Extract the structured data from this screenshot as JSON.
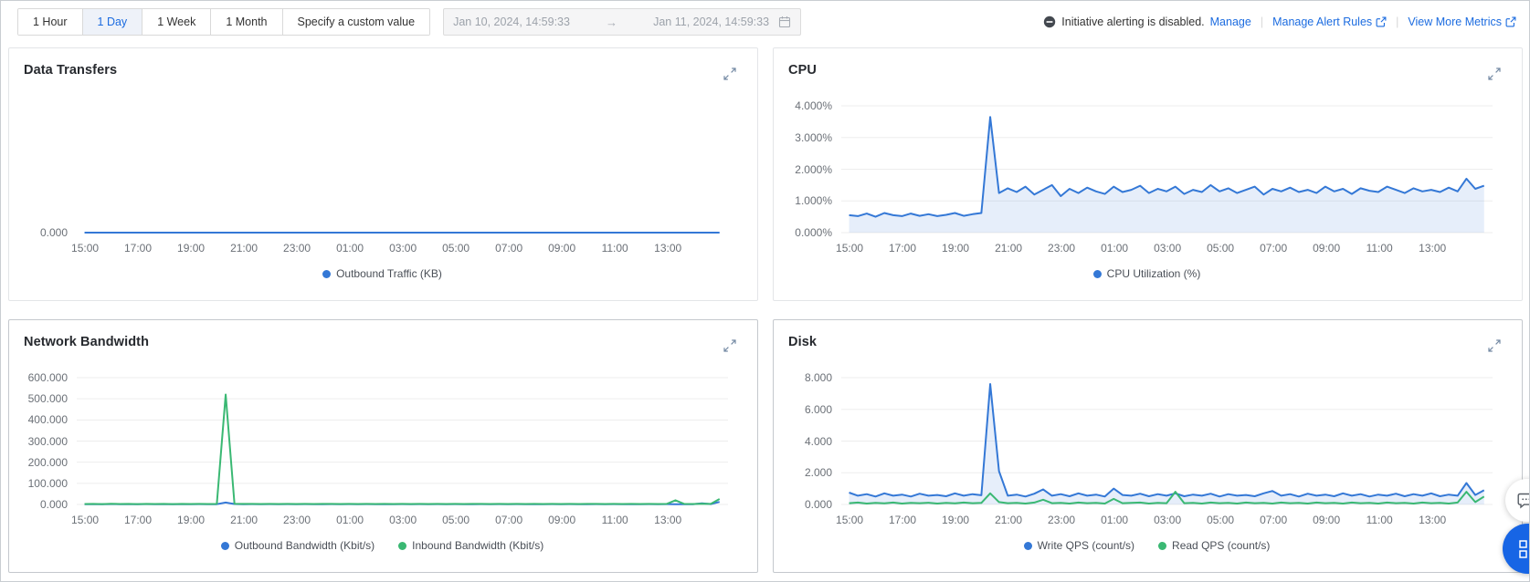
{
  "topbar": {
    "range_options": [
      "1 Hour",
      "1 Day",
      "1 Week",
      "1 Month",
      "Specify a custom value"
    ],
    "selected_range": "1 Day",
    "date_start": "Jan 10, 2024, 14:59:33",
    "date_arrow": "→",
    "date_end": "Jan 11, 2024, 14:59:33",
    "alert_status": "Initiative alerting is disabled.",
    "manage_label": "Manage",
    "separator": "|",
    "manage_alert_rules_label": "Manage Alert Rules",
    "view_more_metrics_label": "View More Metrics"
  },
  "colors": {
    "accent_blue": "#1c6ce0",
    "series_blue": "#3478d6",
    "series_green": "#3ab873",
    "blue_fill": "rgba(60,120,216,0.13)",
    "grid_line": "#ededed",
    "axis_text": "#6b7077"
  },
  "chart_data": [
    {
      "type": "line",
      "title": "Data Transfers",
      "ylim": [
        0,
        0
      ],
      "y_ticks": [
        "0.000"
      ],
      "x_ticks": [
        "15:00",
        "17:00",
        "19:00",
        "21:00",
        "23:00",
        "01:00",
        "03:00",
        "05:00",
        "07:00",
        "09:00",
        "11:00",
        "13:00"
      ],
      "time_range": [
        "14:59",
        "14:59 next day"
      ],
      "series": [
        {
          "name": "Outbound Traffic (KB)",
          "color": "#3478d6",
          "fill": false,
          "values": [
            0,
            0
          ]
        }
      ]
    },
    {
      "type": "area",
      "title": "CPU",
      "ylim": [
        0,
        4
      ],
      "unit": "%",
      "y_ticks": [
        "4.000%",
        "3.000%",
        "2.000%",
        "1.000%",
        "0.000%"
      ],
      "x_ticks": [
        "15:00",
        "17:00",
        "19:00",
        "21:00",
        "23:00",
        "01:00",
        "03:00",
        "05:00",
        "07:00",
        "09:00",
        "11:00",
        "13:00"
      ],
      "sample_interval_minutes": 20,
      "series": [
        {
          "name": "CPU Utilization (%)",
          "color": "#3478d6",
          "fill": true,
          "values": [
            0.55,
            0.52,
            0.6,
            0.5,
            0.62,
            0.55,
            0.52,
            0.6,
            0.53,
            0.58,
            0.52,
            0.56,
            0.62,
            0.53,
            0.58,
            0.62,
            3.65,
            1.25,
            1.4,
            1.28,
            1.45,
            1.2,
            1.35,
            1.5,
            1.15,
            1.38,
            1.25,
            1.42,
            1.3,
            1.22,
            1.45,
            1.28,
            1.35,
            1.48,
            1.25,
            1.38,
            1.3,
            1.45,
            1.22,
            1.35,
            1.28,
            1.5,
            1.3,
            1.4,
            1.25,
            1.35,
            1.45,
            1.2,
            1.38,
            1.3,
            1.42,
            1.28,
            1.35,
            1.25,
            1.45,
            1.3,
            1.38,
            1.22,
            1.4,
            1.32,
            1.28,
            1.45,
            1.35,
            1.25,
            1.4,
            1.3,
            1.35,
            1.28,
            1.42,
            1.3,
            1.7,
            1.38,
            1.48
          ]
        }
      ]
    },
    {
      "type": "line",
      "title": "Network Bandwidth",
      "ylim": [
        0,
        600
      ],
      "y_ticks": [
        "600.000",
        "500.000",
        "400.000",
        "300.000",
        "200.000",
        "100.000",
        "0.000"
      ],
      "x_ticks": [
        "15:00",
        "17:00",
        "19:00",
        "21:00",
        "23:00",
        "01:00",
        "03:00",
        "05:00",
        "07:00",
        "09:00",
        "11:00",
        "13:00"
      ],
      "sample_interval_minutes": 20,
      "series": [
        {
          "name": "Outbound Bandwidth (Kbit/s)",
          "color": "#3478d6",
          "fill": false,
          "values": [
            1.2,
            1.5,
            1.0,
            1.8,
            1.2,
            1.5,
            1.1,
            1.6,
            1.2,
            1.4,
            1.1,
            1.5,
            1.2,
            1.6,
            1.3,
            1.5,
            9.0,
            2.0,
            1.5,
            1.8,
            1.3,
            1.6,
            1.2,
            1.8,
            1.4,
            1.6,
            1.2,
            1.5,
            1.8,
            1.3,
            1.6,
            1.4,
            1.8,
            1.3,
            1.5,
            1.2,
            1.7,
            1.4,
            1.6,
            1.3,
            1.8,
            1.4,
            1.6,
            1.2,
            1.5,
            1.7,
            1.3,
            1.6,
            1.4,
            1.8,
            1.3,
            1.5,
            1.2,
            1.6,
            1.4,
            1.7,
            1.3,
            1.5,
            1.8,
            1.4,
            1.6,
            1.3,
            1.5,
            1.2,
            1.7,
            1.4,
            1.6,
            1.3,
            1.5,
            1.4,
            5.0,
            1.6,
            12.0
          ]
        },
        {
          "name": "Inbound Bandwidth (Kbit/s)",
          "color": "#3ab873",
          "fill": false,
          "values": [
            2.0,
            2.5,
            1.8,
            3.0,
            2.0,
            2.4,
            1.9,
            2.8,
            2.1,
            2.5,
            1.9,
            2.6,
            2.0,
            2.8,
            2.2,
            2.5,
            520.0,
            3.0,
            2.4,
            2.8,
            2.1,
            2.6,
            2.0,
            2.8,
            2.2,
            2.6,
            2.0,
            2.5,
            2.8,
            2.1,
            2.6,
            2.2,
            2.8,
            2.1,
            2.5,
            2.0,
            2.7,
            2.2,
            2.6,
            2.1,
            2.8,
            2.2,
            2.6,
            2.0,
            2.5,
            2.7,
            2.1,
            2.6,
            2.2,
            2.8,
            2.1,
            2.5,
            2.0,
            2.6,
            2.2,
            2.7,
            2.1,
            2.5,
            2.8,
            2.2,
            2.6,
            2.1,
            2.5,
            2.0,
            2.7,
            2.2,
            2.6,
            20.0,
            2.5,
            2.2,
            3.0,
            2.4,
            26.0
          ]
        }
      ]
    },
    {
      "type": "area",
      "title": "Disk",
      "ylim": [
        0,
        8
      ],
      "y_ticks": [
        "8.000",
        "6.000",
        "4.000",
        "2.000",
        "0.000"
      ],
      "x_ticks": [
        "15:00",
        "17:00",
        "19:00",
        "21:00",
        "23:00",
        "01:00",
        "03:00",
        "05:00",
        "07:00",
        "09:00",
        "11:00",
        "13:00"
      ],
      "sample_interval_minutes": 20,
      "series": [
        {
          "name": "Write QPS (count/s)",
          "color": "#3478d6",
          "fill": true,
          "values": [
            0.75,
            0.55,
            0.65,
            0.5,
            0.7,
            0.55,
            0.62,
            0.5,
            0.68,
            0.55,
            0.6,
            0.52,
            0.7,
            0.55,
            0.65,
            0.58,
            7.6,
            2.1,
            0.55,
            0.62,
            0.5,
            0.68,
            0.95,
            0.55,
            0.65,
            0.52,
            0.7,
            0.55,
            0.62,
            0.5,
            1.0,
            0.6,
            0.55,
            0.68,
            0.52,
            0.65,
            0.55,
            0.7,
            0.52,
            0.62,
            0.55,
            0.68,
            0.5,
            0.65,
            0.55,
            0.6,
            0.52,
            0.7,
            0.85,
            0.55,
            0.65,
            0.5,
            0.68,
            0.55,
            0.62,
            0.52,
            0.7,
            0.55,
            0.65,
            0.5,
            0.62,
            0.55,
            0.68,
            0.52,
            0.65,
            0.55,
            0.7,
            0.52,
            0.62,
            0.55,
            1.35,
            0.6,
            0.9
          ]
        },
        {
          "name": "Read QPS (count/s)",
          "color": "#3ab873",
          "fill": false,
          "values": [
            0.08,
            0.12,
            0.06,
            0.1,
            0.07,
            0.12,
            0.06,
            0.1,
            0.08,
            0.11,
            0.06,
            0.1,
            0.07,
            0.12,
            0.08,
            0.1,
            0.7,
            0.15,
            0.08,
            0.1,
            0.06,
            0.12,
            0.3,
            0.08,
            0.1,
            0.06,
            0.12,
            0.08,
            0.1,
            0.06,
            0.35,
            0.08,
            0.1,
            0.12,
            0.06,
            0.1,
            0.08,
            0.8,
            0.08,
            0.1,
            0.06,
            0.12,
            0.08,
            0.1,
            0.06,
            0.12,
            0.08,
            0.1,
            0.06,
            0.12,
            0.08,
            0.1,
            0.06,
            0.12,
            0.08,
            0.1,
            0.06,
            0.12,
            0.08,
            0.1,
            0.06,
            0.12,
            0.08,
            0.1,
            0.06,
            0.12,
            0.08,
            0.1,
            0.06,
            0.12,
            0.8,
            0.15,
            0.5
          ]
        }
      ]
    }
  ],
  "fabs": {
    "chat_button": "feedback chat",
    "apps_button": "quick apps"
  }
}
